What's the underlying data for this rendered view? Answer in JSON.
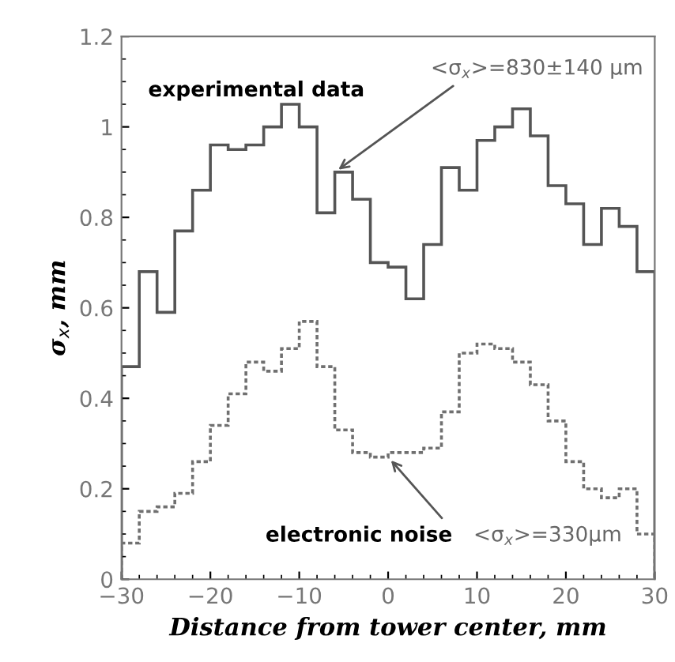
{
  "chart_data": {
    "type": "histogram",
    "xlabel": "Distance from tower center, mm",
    "ylabel": "σ$_{x}$, mm",
    "bins": [
      -30,
      -28,
      -26,
      -24,
      -22,
      -20,
      -18,
      -16,
      -14,
      -12,
      -10,
      -8,
      -6,
      -4,
      -2,
      0,
      2,
      4,
      6,
      8,
      10,
      12,
      14,
      16,
      18,
      20,
      22,
      24,
      26,
      28,
      30
    ],
    "series": [
      {
        "color": "#555555",
        "line_style": "solid",
        "values": [
          0.47,
          0.68,
          0.59,
          0.77,
          0.86,
          0.96,
          0.95,
          0.96,
          1.0,
          1.05,
          1.0,
          0.81,
          0.9,
          0.84,
          0.7,
          0.69,
          0.62,
          0.74,
          0.91,
          0.86,
          0.97,
          1.0,
          1.04,
          0.98,
          0.87,
          0.83,
          0.74,
          0.82,
          0.78,
          0.68
        ]
      },
      {
        "color": "#707070",
        "line_style": "dotted",
        "values": [
          0.08,
          0.15,
          0.16,
          0.19,
          0.26,
          0.34,
          0.41,
          0.48,
          0.46,
          0.51,
          0.57,
          0.47,
          0.33,
          0.28,
          0.27,
          0.28,
          0.28,
          0.29,
          0.37,
          0.5,
          0.52,
          0.51,
          0.48,
          0.43,
          0.35,
          0.26,
          0.2,
          0.18,
          0.2,
          0.1
        ]
      }
    ],
    "xlim": [
      -30,
      30
    ],
    "xticks": [
      {
        "value": -30,
        "label": "−30"
      },
      {
        "value": -20,
        "label": "−20"
      },
      {
        "value": -10,
        "label": "−10"
      },
      0,
      10,
      20,
      30
    ],
    "ylim": [
      0,
      1.2
    ],
    "yticks": [
      0,
      0.2,
      0.4,
      0.6,
      0.8,
      1,
      1.2
    ],
    "annotations": [
      {
        "text": "<σ$_{x}$>=830±140 μm",
        "x": -6,
        "y": 0.9
      },
      "experimental data",
      {
        "text": "electronic noise",
        "x": 0,
        "y": 0.27
      },
      "<σ$_{x}$>=330μm"
    ],
    "grid": false,
    "legend": false
  }
}
